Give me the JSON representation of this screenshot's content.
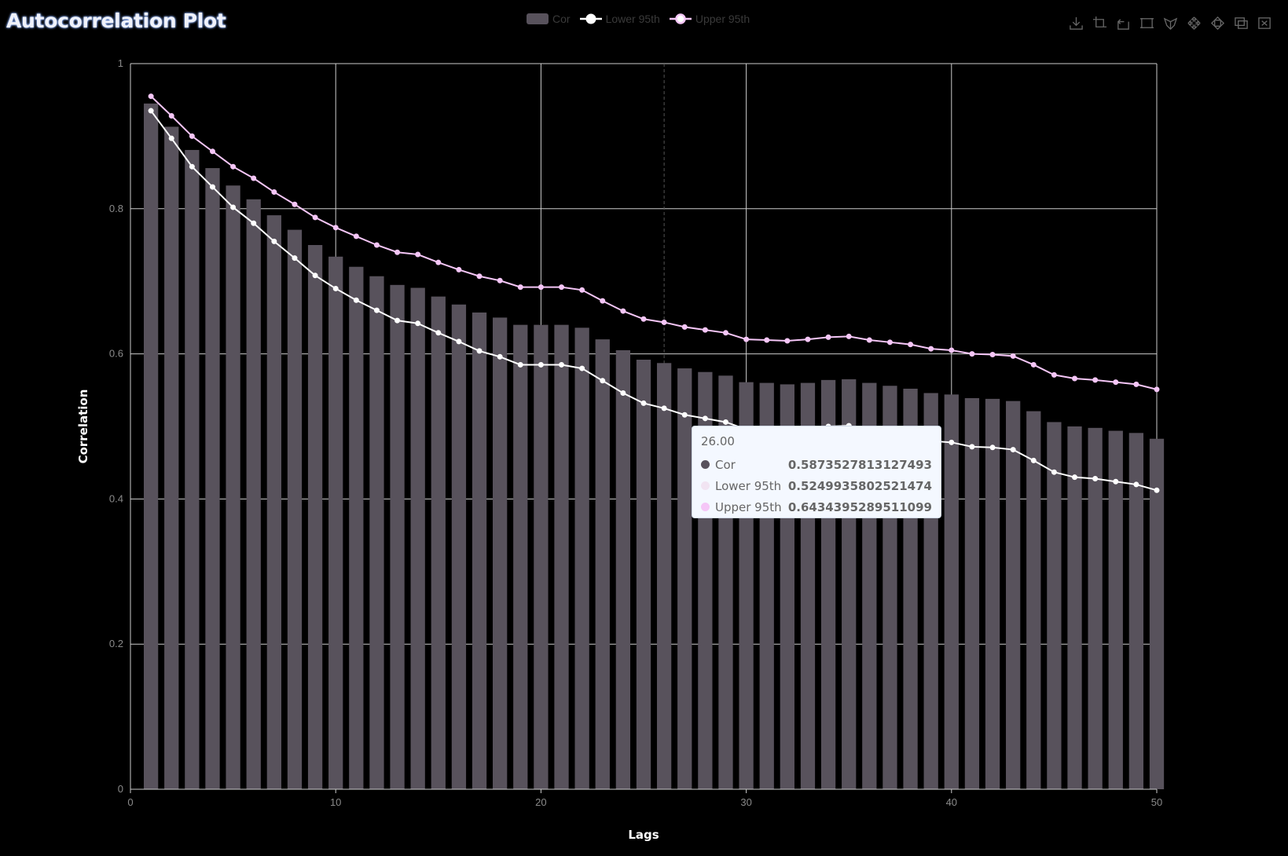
{
  "title": "Autocorrelation Plot",
  "legend": [
    {
      "name": "Cor",
      "type": "bar",
      "color": "#58525c"
    },
    {
      "name": "Lower 95th",
      "type": "line",
      "color": "#ffffff"
    },
    {
      "name": "Upper 95th",
      "type": "line",
      "color": "#f5c6f7"
    }
  ],
  "toolbox": [
    "download-icon",
    "crop-icon",
    "undo-icon",
    "rect-select-icon",
    "lasso-select-icon",
    "keep-select-icon",
    "clear-select-icon",
    "data-zoom-icon",
    "zoom-reset-icon"
  ],
  "colors": {
    "bar": "#58525c",
    "lower": "#ffffff",
    "upper": "#f5c6f7",
    "grid": "#cccccc",
    "background": "#000000"
  },
  "chart_data": {
    "type": "bar",
    "title": "Autocorrelation Plot",
    "xlabel": "Lags",
    "ylabel": "Correlation",
    "xlim": [
      0,
      50
    ],
    "ylim": [
      0,
      1
    ],
    "xticks": [
      0,
      10,
      20,
      30,
      40,
      50
    ],
    "yticks": [
      0,
      0.2,
      0.4,
      0.6,
      0.8,
      1
    ],
    "grid": true,
    "legend_position": "top-center",
    "x": [
      1,
      2,
      3,
      4,
      5,
      6,
      7,
      8,
      9,
      10,
      11,
      12,
      13,
      14,
      15,
      16,
      17,
      18,
      19,
      20,
      21,
      22,
      23,
      24,
      25,
      26,
      27,
      28,
      29,
      30,
      31,
      32,
      33,
      34,
      35,
      36,
      37,
      38,
      39,
      40,
      41,
      42,
      43,
      44,
      45,
      46,
      47,
      48,
      49,
      50
    ],
    "series": [
      {
        "name": "Cor",
        "type": "bar",
        "values": [
          0.945,
          0.913,
          0.881,
          0.856,
          0.832,
          0.813,
          0.791,
          0.771,
          0.75,
          0.734,
          0.72,
          0.707,
          0.695,
          0.691,
          0.679,
          0.668,
          0.657,
          0.65,
          0.64,
          0.64,
          0.64,
          0.636,
          0.62,
          0.605,
          0.592,
          0.5873527813127493,
          0.58,
          0.575,
          0.57,
          0.561,
          0.56,
          0.558,
          0.56,
          0.564,
          0.565,
          0.56,
          0.556,
          0.552,
          0.546,
          0.544,
          0.539,
          0.538,
          0.535,
          0.521,
          0.506,
          0.5,
          0.498,
          0.494,
          0.491,
          0.483
        ]
      },
      {
        "name": "Lower 95th",
        "type": "line",
        "values": [
          0.935,
          0.897,
          0.858,
          0.83,
          0.802,
          0.78,
          0.755,
          0.732,
          0.708,
          0.69,
          0.674,
          0.66,
          0.646,
          0.642,
          0.629,
          0.617,
          0.604,
          0.596,
          0.585,
          0.585,
          0.585,
          0.58,
          0.563,
          0.546,
          0.532,
          0.5249935802521474,
          0.516,
          0.511,
          0.506,
          0.496,
          0.495,
          0.493,
          0.495,
          0.5,
          0.501,
          0.495,
          0.491,
          0.486,
          0.48,
          0.478,
          0.472,
          0.471,
          0.468,
          0.453,
          0.437,
          0.43,
          0.428,
          0.424,
          0.42,
          0.412
        ]
      },
      {
        "name": "Upper 95th",
        "type": "line",
        "values": [
          0.955,
          0.928,
          0.9,
          0.879,
          0.858,
          0.842,
          0.823,
          0.806,
          0.788,
          0.774,
          0.762,
          0.75,
          0.74,
          0.737,
          0.726,
          0.716,
          0.707,
          0.701,
          0.692,
          0.692,
          0.692,
          0.688,
          0.673,
          0.659,
          0.648,
          0.6434395289511099,
          0.637,
          0.633,
          0.629,
          0.62,
          0.619,
          0.618,
          0.62,
          0.623,
          0.624,
          0.619,
          0.616,
          0.613,
          0.607,
          0.605,
          0.6,
          0.599,
          0.597,
          0.585,
          0.571,
          0.566,
          0.564,
          0.561,
          0.558,
          0.551
        ]
      }
    ]
  },
  "tooltip": {
    "header": "26.00",
    "rows": [
      {
        "name": "Cor",
        "value": "0.5873527813127493",
        "color": "#58525c"
      },
      {
        "name": "Lower 95th",
        "value": "0.5249935802521474",
        "color": "#f1e4f2"
      },
      {
        "name": "Upper 95th",
        "value": "0.6434395289511099",
        "color": "#f5c6f7"
      }
    ]
  },
  "pointer_x": 26
}
